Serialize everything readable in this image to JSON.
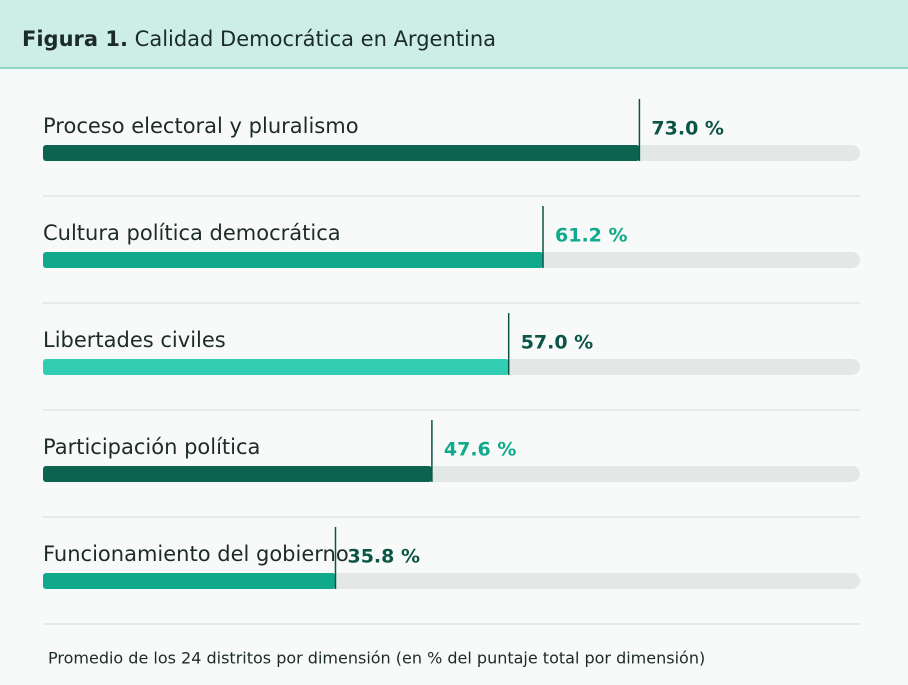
{
  "chart_data": {
    "type": "hbar",
    "title_prefix": "Figura 1.",
    "title": "Calidad Democrática en Argentina",
    "categories": [
      "Proceso electoral y pluralismo",
      "Cultura política democrática",
      "Libertades civiles",
      "Participación política",
      "Funcionamiento del gobierno"
    ],
    "values": [
      73.0,
      61.2,
      57.0,
      47.6,
      35.8
    ],
    "value_labels": [
      "73.0 %",
      "61.2 %",
      "57.0 %",
      "47.6 %",
      "35.8 %"
    ],
    "colors": [
      "#0b6350",
      "#10a98b",
      "#33cdb4",
      "#0b6350",
      "#10a98b"
    ],
    "label_colors": [
      "#0b5546",
      "#10a98b",
      "#0b5546",
      "#10a98b",
      "#0b5546"
    ],
    "track_color": "#e3e8e6",
    "xlim": [
      0,
      100
    ],
    "footnote": "Promedio de los 24 distritos por dimensión (en % del puntaje total por dimensión)"
  }
}
